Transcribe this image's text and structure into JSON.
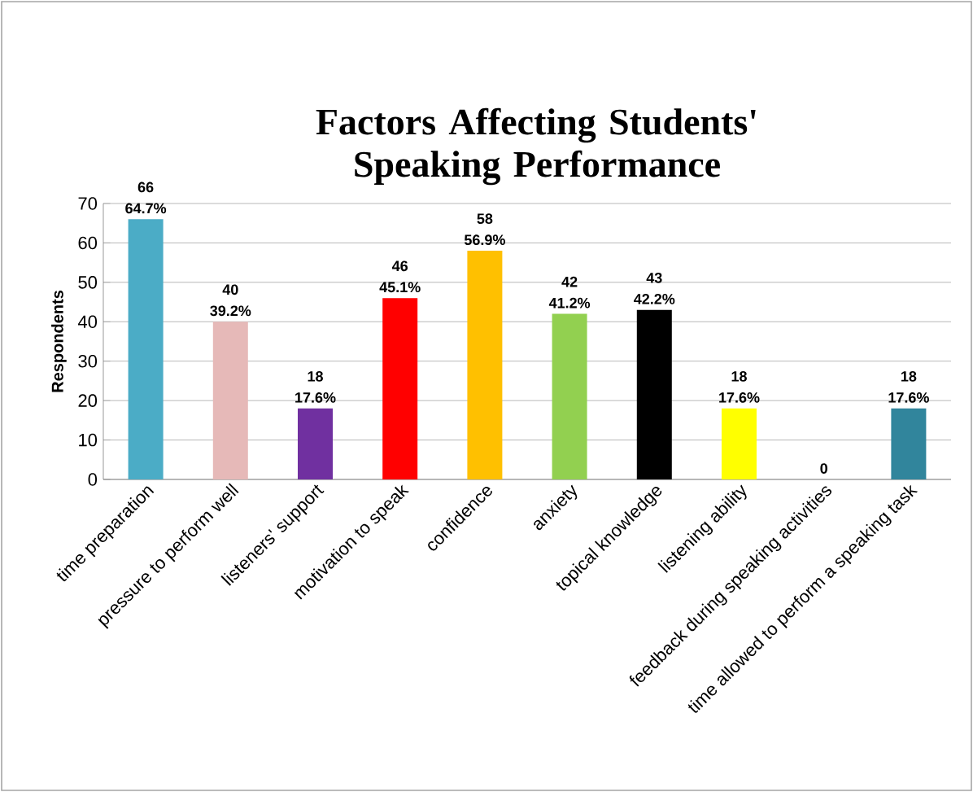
{
  "chart_data": {
    "type": "bar",
    "title": "Factors Affecting Students' Speaking Performance",
    "ylabel": "Respondents",
    "categories": [
      "time preparation",
      "pressure to perform well",
      "listeners' support",
      "motivation to speak",
      "confidence",
      "anxiety",
      "topical knowledge",
      "listening ability",
      "feedback during speaking activities",
      "time allowed to perform a speaking task"
    ],
    "values": [
      66,
      40,
      18,
      46,
      58,
      42,
      43,
      18,
      0,
      18
    ],
    "colors": [
      "#4bacc6",
      "#e6b9b8",
      "#7030a0",
      "#ff0000",
      "#ffc000",
      "#92d050",
      "#000000",
      "#ffff00",
      "#31859c",
      "#31859c"
    ],
    "value_labels": [
      "66 64.7%",
      "40 39.2%",
      "18 17.6%",
      "46 45.1%",
      "58 56.9%",
      "42 41.2%",
      "43 42.2%",
      "18 17.6%",
      "0",
      "18 17.6%"
    ],
    "ylim": [
      0,
      70
    ],
    "yticks": [
      0,
      10,
      20,
      30,
      40,
      50,
      60,
      70
    ],
    "grid": "y"
  }
}
